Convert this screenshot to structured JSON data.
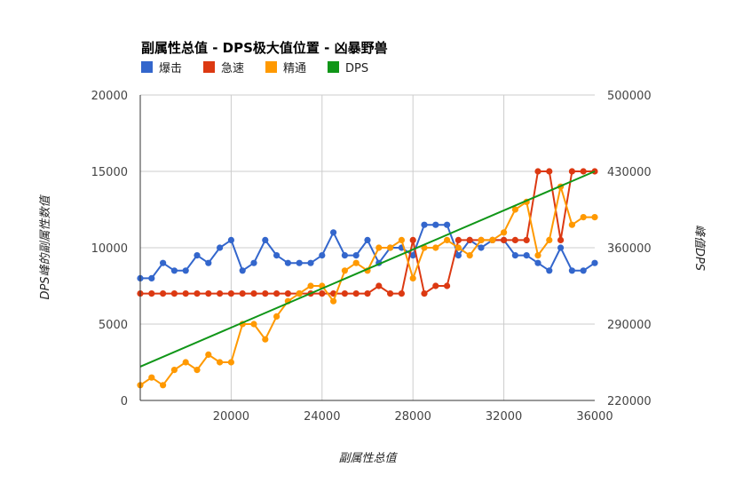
{
  "chart_data": {
    "type": "line",
    "title": "副属性总值 - DPS极大值位置 - 凶暴野兽",
    "xlabel": "副属性总值",
    "ylabel_left": "DPS峰的副属性数值",
    "ylabel_right": "峰值DPS",
    "xlim": [
      16000,
      36000
    ],
    "ylim_left": [
      0,
      20000
    ],
    "ylim_right": [
      220000,
      500000
    ],
    "x_ticks": [
      "20000",
      "24000",
      "28000",
      "32000",
      "36000"
    ],
    "x_tick_values": [
      20000,
      24000,
      28000,
      32000,
      36000
    ],
    "y_left_ticks": [
      "0",
      "5000",
      "10000",
      "15000",
      "20000"
    ],
    "y_left_tick_values": [
      0,
      5000,
      10000,
      15000,
      20000
    ],
    "y_right_ticks": [
      "220000",
      "290000",
      "360000",
      "430000",
      "500000"
    ],
    "grid": true,
    "legend_position": "top-left",
    "x": [
      16000,
      16500,
      17000,
      17500,
      18000,
      18500,
      19000,
      19500,
      20000,
      20500,
      21000,
      21500,
      22000,
      22500,
      23000,
      23500,
      24000,
      24500,
      25000,
      25500,
      26000,
      26500,
      27000,
      27500,
      28000,
      28500,
      29000,
      29500,
      30000,
      30500,
      31000,
      31500,
      32000,
      32500,
      33000,
      33500,
      34000,
      34500,
      35000,
      35500,
      36000
    ],
    "series": [
      {
        "name": "爆击",
        "color": "#3366cc",
        "axis": "left",
        "markers": true,
        "values": [
          8000,
          8000,
          9000,
          8500,
          8500,
          9500,
          9000,
          10000,
          10500,
          8500,
          9000,
          10500,
          9500,
          9000,
          9000,
          9000,
          9500,
          11000,
          9500,
          9500,
          10500,
          9000,
          10000,
          10000,
          9500,
          11500,
          11500,
          11500,
          9500,
          10500,
          10000,
          10500,
          10500,
          9500,
          9500,
          9000,
          8500,
          10000,
          8500,
          8500,
          9000
        ]
      },
      {
        "name": "急速",
        "color": "#dc3912",
        "axis": "left",
        "markers": true,
        "values": [
          7000,
          7000,
          7000,
          7000,
          7000,
          7000,
          7000,
          7000,
          7000,
          7000,
          7000,
          7000,
          7000,
          7000,
          7000,
          7000,
          7000,
          7000,
          7000,
          7000,
          7000,
          7500,
          7000,
          7000,
          10500,
          7000,
          7500,
          7500,
          10500,
          10500,
          10500,
          10500,
          10500,
          10500,
          10500,
          15000,
          15000,
          10500,
          15000,
          15000,
          15000
        ]
      },
      {
        "name": "精通",
        "color": "#ff9900",
        "axis": "left",
        "markers": true,
        "values": [
          1000,
          1500,
          1000,
          2000,
          2500,
          2000,
          3000,
          2500,
          2500,
          5000,
          5000,
          4000,
          5500,
          6500,
          7000,
          7500,
          7500,
          6500,
          8500,
          9000,
          8500,
          10000,
          10000,
          10500,
          8000,
          10000,
          10000,
          10500,
          10000,
          9500,
          10500,
          10500,
          11000,
          12500,
          13000,
          9500,
          10500,
          14000,
          11500,
          12000,
          12000
        ]
      },
      {
        "name": "DPS",
        "color": "#109618",
        "axis": "right",
        "markers": false,
        "x": [
          16000,
          36000
        ],
        "values": [
          251000,
          430000
        ]
      }
    ]
  }
}
